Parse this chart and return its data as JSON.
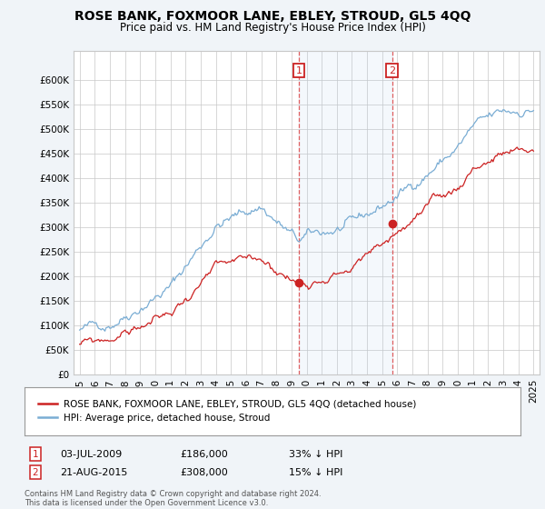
{
  "title": "ROSE BANK, FOXMOOR LANE, EBLEY, STROUD, GL5 4QQ",
  "subtitle": "Price paid vs. HM Land Registry's House Price Index (HPI)",
  "ylim": [
    0,
    660000
  ],
  "xlim_start": 1994.6,
  "xlim_end": 2025.4,
  "hpi_color": "#7aadd4",
  "price_color": "#cc2222",
  "sale1_date": 2009.5,
  "sale1_price": 186000,
  "sale1_label": "1",
  "sale2_date": 2015.65,
  "sale2_price": 308000,
  "sale2_label": "2",
  "legend_line1": "ROSE BANK, FOXMOOR LANE, EBLEY, STROUD, GL5 4QQ (detached house)",
  "legend_line2": "HPI: Average price, detached house, Stroud",
  "footer": "Contains HM Land Registry data © Crown copyright and database right 2024.\nThis data is licensed under the Open Government Licence v3.0.",
  "background_color": "#f0f4f8",
  "plot_bg_color": "#ffffff",
  "grid_color": "#c8c8c8"
}
